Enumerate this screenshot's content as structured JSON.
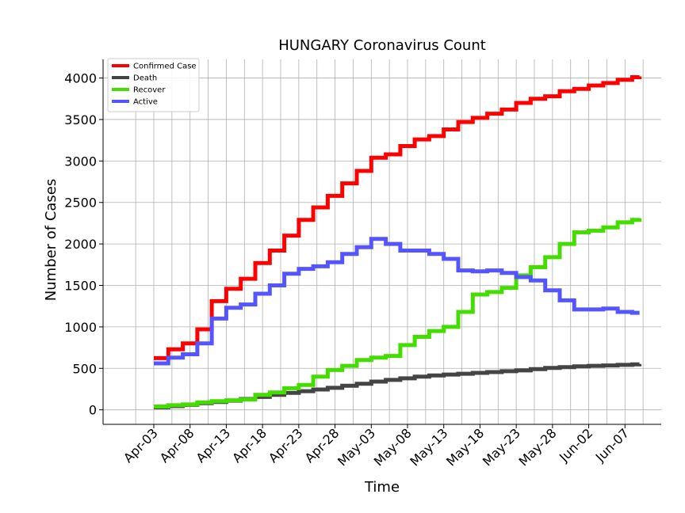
{
  "chart_data": {
    "type": "line",
    "title": "HUNGARY Coronavirus Count",
    "xlabel": "Time",
    "ylabel": "Number of Cases",
    "ylim": [
      -175,
      4225
    ],
    "xlim": [
      "2020-03-27",
      "2020-06-12"
    ],
    "grid": true,
    "legend_position": "top-left",
    "x_tick_labels": [
      "Apr-03",
      "Apr-08",
      "Apr-13",
      "Apr-18",
      "Apr-23",
      "Apr-28",
      "May-03",
      "May-08",
      "May-13",
      "May-18",
      "May-23",
      "May-28",
      "Jun-02",
      "Jun-07"
    ],
    "x_tick_dates": [
      "2020-04-03",
      "2020-04-08",
      "2020-04-13",
      "2020-04-18",
      "2020-04-23",
      "2020-04-28",
      "2020-05-03",
      "2020-05-08",
      "2020-05-13",
      "2020-05-18",
      "2020-05-23",
      "2020-05-28",
      "2020-06-02",
      "2020-06-07"
    ],
    "y_ticks": [
      0,
      500,
      1000,
      1500,
      2000,
      2500,
      3000,
      3500,
      4000
    ],
    "x": [
      "2020-04-03",
      "2020-04-05",
      "2020-04-07",
      "2020-04-09",
      "2020-04-11",
      "2020-04-13",
      "2020-04-15",
      "2020-04-17",
      "2020-04-19",
      "2020-04-21",
      "2020-04-23",
      "2020-04-25",
      "2020-04-27",
      "2020-04-29",
      "2020-05-01",
      "2020-05-03",
      "2020-05-05",
      "2020-05-07",
      "2020-05-09",
      "2020-05-11",
      "2020-05-13",
      "2020-05-15",
      "2020-05-17",
      "2020-05-19",
      "2020-05-21",
      "2020-05-23",
      "2020-05-25",
      "2020-05-27",
      "2020-05-29",
      "2020-05-31",
      "2020-06-02",
      "2020-06-04",
      "2020-06-06",
      "2020-06-08",
      "2020-06-09"
    ],
    "series": [
      {
        "name": "Confirmed Case",
        "color": "#ff0000",
        "values": [
          623,
          730,
          800,
          970,
          1310,
          1460,
          1580,
          1770,
          1920,
          2100,
          2290,
          2440,
          2580,
          2730,
          2880,
          3040,
          3080,
          3180,
          3260,
          3300,
          3380,
          3470,
          3520,
          3570,
          3620,
          3700,
          3750,
          3780,
          3840,
          3870,
          3910,
          3940,
          3980,
          4010,
          4020
        ]
      },
      {
        "name": "Death",
        "color": "#444444",
        "values": [
          30,
          45,
          60,
          80,
          95,
          110,
          130,
          155,
          180,
          205,
          225,
          245,
          265,
          290,
          315,
          340,
          360,
          380,
          400,
          415,
          425,
          435,
          445,
          455,
          465,
          475,
          490,
          505,
          515,
          525,
          530,
          535,
          542,
          548,
          553
        ]
      },
      {
        "name": "Recover",
        "color": "#44dd00",
        "values": [
          40,
          55,
          65,
          90,
          105,
          115,
          125,
          180,
          210,
          260,
          300,
          400,
          480,
          530,
          600,
          630,
          650,
          780,
          880,
          950,
          1000,
          1180,
          1390,
          1420,
          1470,
          1620,
          1720,
          1840,
          2000,
          2140,
          2160,
          2200,
          2260,
          2290,
          2310
        ]
      },
      {
        "name": "Active",
        "color": "#5555ff",
        "values": [
          560,
          630,
          670,
          800,
          1100,
          1230,
          1270,
          1400,
          1500,
          1640,
          1700,
          1730,
          1780,
          1880,
          1960,
          2060,
          2000,
          1920,
          1920,
          1880,
          1820,
          1680,
          1670,
          1680,
          1650,
          1600,
          1560,
          1440,
          1320,
          1210,
          1210,
          1220,
          1180,
          1170,
          1170
        ]
      }
    ]
  }
}
